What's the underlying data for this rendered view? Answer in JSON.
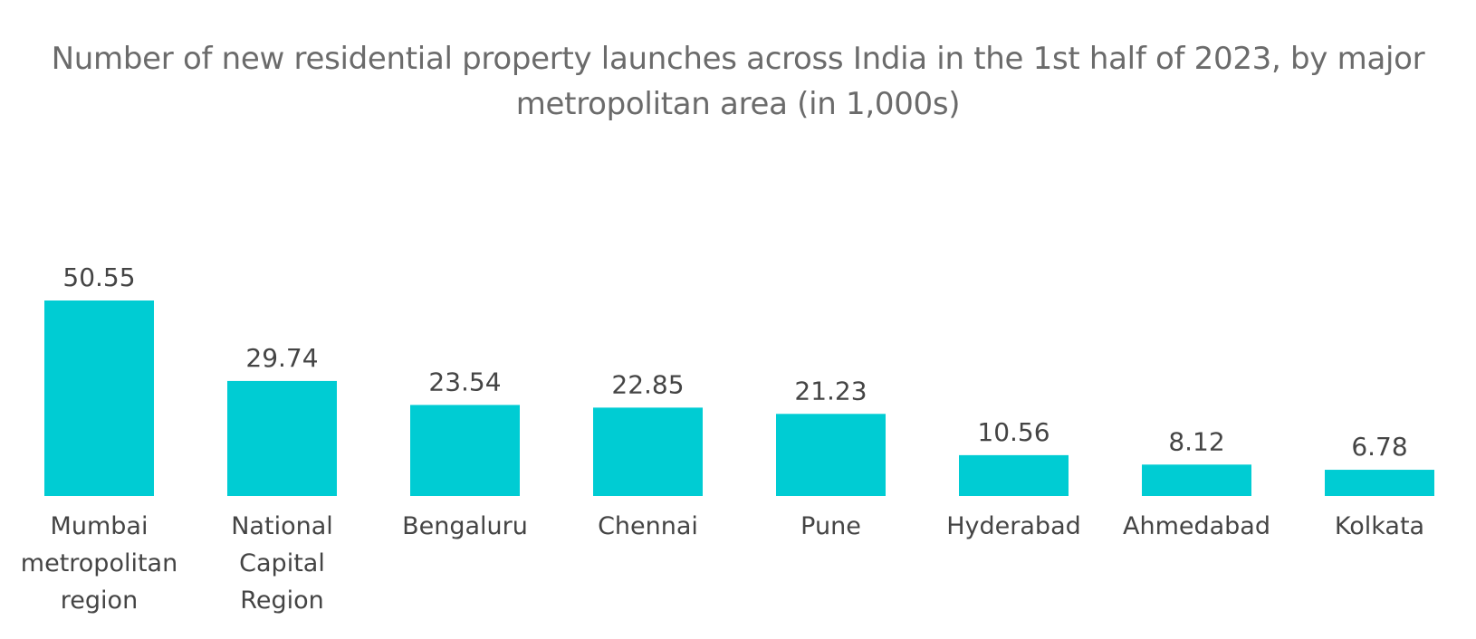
{
  "chart_data": {
    "type": "bar",
    "title": "Number of new residential property launches across India in the 1st half of 2023, by major metropolitan area (in 1,000s)",
    "categories": [
      "Mumbai metropolitan region",
      "National Capital Region",
      "Bengaluru",
      "Chennai",
      "Pune",
      "Hyderabad",
      "Ahmedabad",
      "Kolkata"
    ],
    "values": [
      50.55,
      29.74,
      23.54,
      22.85,
      21.23,
      10.56,
      8.12,
      6.78
    ],
    "data_labels": [
      "50.55",
      "29.74",
      "23.54",
      "22.85",
      "21.23",
      "10.56",
      "8.12",
      "6.78"
    ],
    "xlabel": "",
    "ylabel": "",
    "ylim": [
      0,
      50.55
    ],
    "grid": false,
    "legend": "none",
    "bar_color": "#00CCD3"
  }
}
